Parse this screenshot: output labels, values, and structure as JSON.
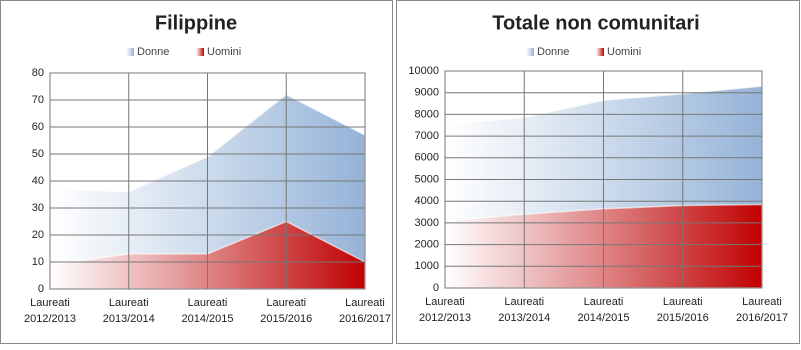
{
  "chart_data": [
    {
      "type": "area",
      "title": "Filippine",
      "categories": [
        [
          "Laureati",
          "2012/2013"
        ],
        [
          "Laureati",
          "2013/2014"
        ],
        [
          "Laureati",
          "2014/2015"
        ],
        [
          "Laureati",
          "2015/2016"
        ],
        [
          "Laureati",
          "2016/2017"
        ]
      ],
      "series": [
        {
          "name": "Donne",
          "color": "#95b3d7",
          "values": [
            37,
            36,
            49,
            72,
            57
          ]
        },
        {
          "name": "Uomini",
          "color": "#c00000",
          "values": [
            9,
            13,
            13,
            25,
            10
          ]
        }
      ],
      "ylim": [
        0,
        80
      ],
      "yticks": [
        0,
        10,
        20,
        30,
        40,
        50,
        60,
        70,
        80
      ],
      "grid": true
    },
    {
      "type": "area",
      "title": "Totale non comunitari",
      "categories": [
        [
          "Laureati",
          "2012/2013"
        ],
        [
          "Laureati",
          "2013/2014"
        ],
        [
          "Laureati",
          "2014/2015"
        ],
        [
          "Laureati",
          "2015/2016"
        ],
        [
          "Laureati",
          "2016/2017"
        ]
      ],
      "series": [
        {
          "name": "Donne",
          "color": "#95b3d7",
          "values": [
            7550,
            7850,
            8650,
            8950,
            9300
          ]
        },
        {
          "name": "Uomini",
          "color": "#c00000",
          "values": [
            3100,
            3400,
            3650,
            3800,
            3850
          ]
        }
      ],
      "ylim": [
        0,
        10000
      ],
      "yticks": [
        0,
        1000,
        2000,
        3000,
        4000,
        5000,
        6000,
        7000,
        8000,
        9000,
        10000
      ],
      "grid": true
    }
  ]
}
